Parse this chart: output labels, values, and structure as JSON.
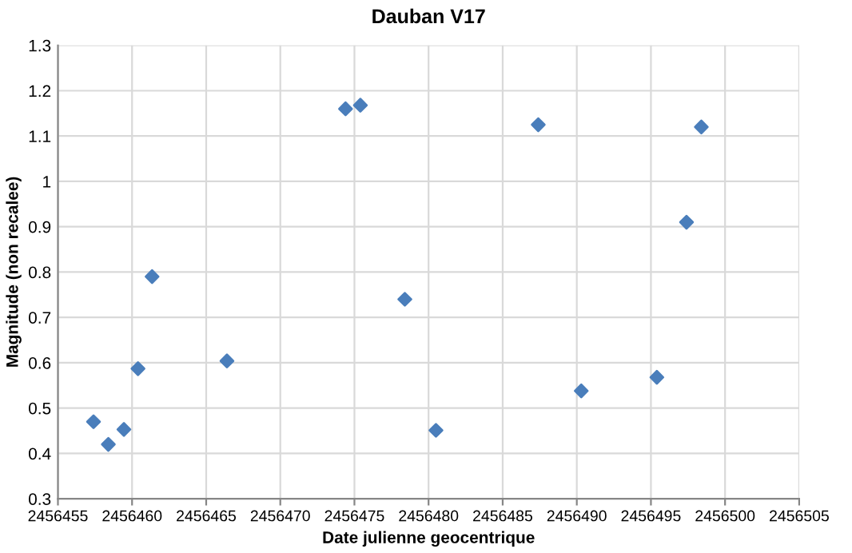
{
  "chart_data": {
    "type": "scatter",
    "title": "Dauban V17",
    "xlabel": "Date julienne geocentrique",
    "ylabel": "Magnitude (non recalee)",
    "x": [
      2456457.4,
      2456458.4,
      2456459.45,
      2456460.4,
      2456461.35,
      2456466.4,
      2456474.4,
      2456475.4,
      2456478.4,
      2456480.5,
      2456487.4,
      2456490.3,
      2456495.4,
      2456497.4,
      2456498.4
    ],
    "series": [
      {
        "color": "#4a7ebb",
        "values": [
          0.47,
          0.42,
          0.453,
          0.587,
          0.79,
          0.604,
          1.16,
          1.168,
          0.74,
          0.451,
          1.125,
          0.538,
          0.568,
          0.91,
          1.12
        ]
      }
    ],
    "xlim": [
      2456455,
      2456505
    ],
    "xticks": [
      2456455,
      2456460,
      2456465,
      2456470,
      2456475,
      2456480,
      2456485,
      2456490,
      2456495,
      2456500,
      2456505
    ],
    "ylim": [
      0.3,
      1.3
    ],
    "yticks": [
      0.3,
      0.4,
      0.5,
      0.6,
      0.7,
      0.8,
      0.9,
      1,
      1.1,
      1.2,
      1.3
    ],
    "grid": true,
    "marker": "diamond",
    "legend": false
  }
}
